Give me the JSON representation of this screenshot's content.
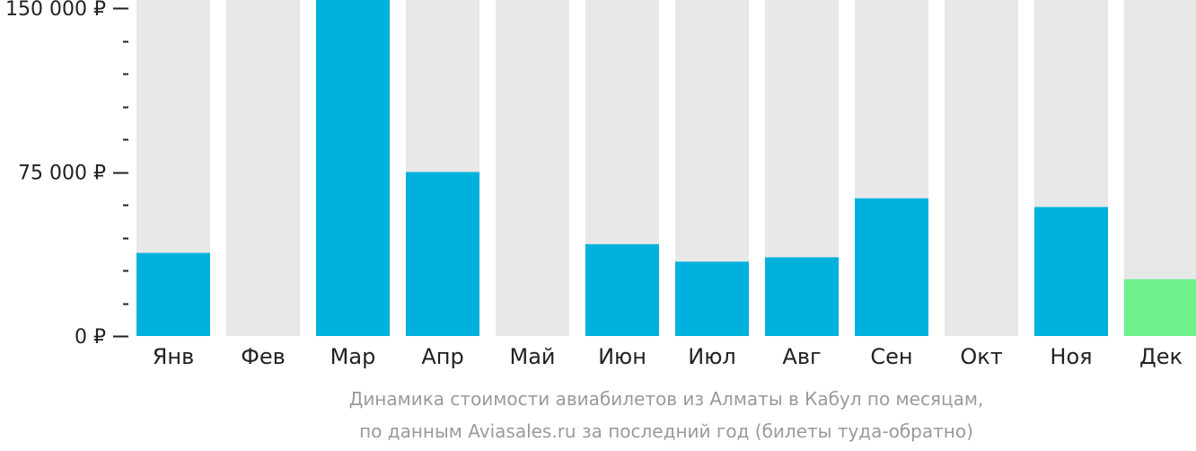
{
  "chart_data": {
    "type": "bar",
    "categories": [
      "Янв",
      "Фев",
      "Мар",
      "Апр",
      "Май",
      "Июн",
      "Июл",
      "Авг",
      "Сен",
      "Окт",
      "Ноя",
      "Дек"
    ],
    "values": [
      38000,
      null,
      154000,
      75000,
      null,
      42000,
      34000,
      36000,
      63000,
      null,
      59000,
      26000
    ],
    "highlight_index": 11,
    "ylim": [
      0,
      155000
    ],
    "yticks": [
      {
        "value": 0,
        "label": "0 ₽"
      },
      {
        "value": 75000,
        "label": "75 000 ₽"
      },
      {
        "value": 150000,
        "label": "150 000 ₽"
      }
    ],
    "minor_tick_step": 15000,
    "colors": {
      "bar": "#00b1dd",
      "highlight": "#6ef08a",
      "background_bar": "#e8e8e8",
      "axis": "#222222"
    },
    "caption": [
      "Динамика стоимости авиабилетов из Алматы в Кабул по месяцам,",
      "по данным Aviasales.ru за последний год (билеты туда-обратно)"
    ]
  }
}
